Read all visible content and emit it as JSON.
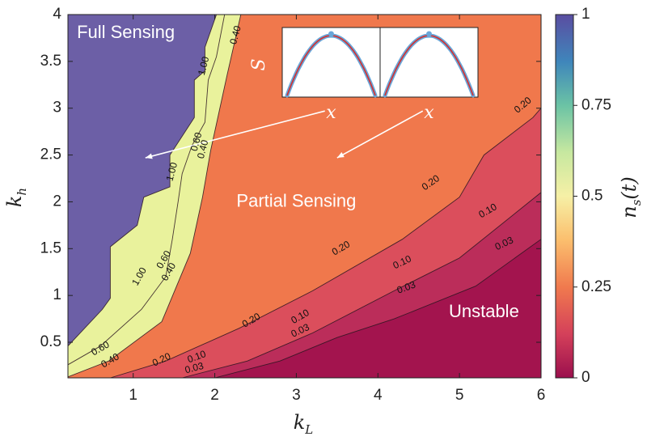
{
  "chart_data": {
    "type": "heatmap",
    "subtype": "filled-contour",
    "x_axis": {
      "label_main": "k",
      "label_sub": "L",
      "range": [
        0.2,
        6
      ],
      "ticks": [
        1,
        2,
        3,
        4,
        5,
        6
      ]
    },
    "y_axis": {
      "label_main": "k",
      "label_sub": "h",
      "range": [
        0.12,
        4
      ],
      "ticks": [
        0.5,
        1,
        1.5,
        2,
        2.5,
        3,
        3.5,
        4
      ]
    },
    "colorbar": {
      "label_main": "n",
      "label_sub": "s",
      "label_suffix": "(t)",
      "range": [
        0,
        1
      ],
      "ticks": [
        {
          "value": 0,
          "label": "0"
        },
        {
          "value": 0.25,
          "label": "0.25"
        },
        {
          "value": 0.5,
          "label": "0.5"
        },
        {
          "value": 0.75,
          "label": "0.75"
        },
        {
          "value": 1,
          "label": "1"
        }
      ]
    },
    "levels": [
      {
        "name": "≥1.00",
        "color": "#6c5fa6"
      },
      {
        "name": "0.40–1.00",
        "color": "#e9f29c"
      },
      {
        "name": "0.20–0.40",
        "color": "#f0784c"
      },
      {
        "name": "0.10–0.20",
        "color": "#db4e5c"
      },
      {
        "name": "0.03–0.10",
        "color": "#bb2d5a"
      },
      {
        "name": "<0.03",
        "color": "#a3144e"
      }
    ],
    "contours": [
      {
        "level": "1.00",
        "points": [
          [
            0.2,
            0.46
          ],
          [
            0.62,
            0.85
          ],
          [
            0.72,
            0.97
          ],
          [
            0.72,
            1.52
          ],
          [
            1.05,
            1.75
          ],
          [
            1.13,
            2.05
          ],
          [
            1.45,
            2.16
          ],
          [
            1.45,
            2.5
          ],
          [
            1.75,
            2.9
          ],
          [
            1.75,
            3.3
          ],
          [
            1.88,
            3.4
          ],
          [
            1.88,
            3.65
          ],
          [
            2.02,
            4.0
          ]
        ]
      },
      {
        "level": "0.60",
        "points": [
          [
            0.2,
            0.26
          ],
          [
            0.6,
            0.46
          ],
          [
            1.1,
            0.85
          ],
          [
            1.4,
            1.2
          ],
          [
            1.48,
            1.6
          ],
          [
            1.55,
            2.0
          ],
          [
            1.6,
            2.3
          ],
          [
            1.72,
            2.6
          ],
          [
            1.88,
            2.85
          ],
          [
            1.92,
            3.3
          ],
          [
            2.02,
            3.55
          ],
          [
            2.12,
            4.0
          ]
        ]
      },
      {
        "level": "0.40",
        "points": [
          [
            0.2,
            0.13
          ],
          [
            0.7,
            0.3
          ],
          [
            1.35,
            0.72
          ],
          [
            1.7,
            1.45
          ],
          [
            1.85,
            2.05
          ],
          [
            1.95,
            2.55
          ],
          [
            2.05,
            2.95
          ],
          [
            2.15,
            3.35
          ],
          [
            2.32,
            4.0
          ]
        ]
      },
      {
        "level": "0.20",
        "points": [
          [
            0.72,
            0.12
          ],
          [
            1.4,
            0.3
          ],
          [
            2.3,
            0.65
          ],
          [
            3.2,
            1.05
          ],
          [
            4.3,
            1.6
          ],
          [
            5.0,
            2.05
          ],
          [
            5.3,
            2.5
          ],
          [
            5.9,
            2.9
          ],
          [
            6.0,
            3.0
          ]
        ]
      },
      {
        "level": "0.10",
        "points": [
          [
            1.6,
            0.12
          ],
          [
            2.4,
            0.3
          ],
          [
            3.2,
            0.6
          ],
          [
            4.2,
            1.05
          ],
          [
            5.0,
            1.4
          ],
          [
            6.0,
            2.1
          ]
        ]
      },
      {
        "level": "0.03",
        "points": [
          [
            2.0,
            0.12
          ],
          [
            2.8,
            0.3
          ],
          [
            3.5,
            0.55
          ],
          [
            4.2,
            0.75
          ],
          [
            5.2,
            1.1
          ],
          [
            6.0,
            1.6
          ]
        ]
      }
    ],
    "contour_labels": [
      {
        "text": "1.00",
        "x": 1.87,
        "y": 3.45,
        "angle": -75
      },
      {
        "text": "0.40",
        "x": 2.26,
        "y": 3.78,
        "angle": -75
      },
      {
        "text": "0.60",
        "x": 1.78,
        "y": 2.64,
        "angle": -75
      },
      {
        "text": "0.40",
        "x": 1.86,
        "y": 2.56,
        "angle": -75
      },
      {
        "text": "1.00",
        "x": 1.48,
        "y": 2.32,
        "angle": -75
      },
      {
        "text": "1.00",
        "x": 1.08,
        "y": 1.2,
        "angle": -60
      },
      {
        "text": "0.60",
        "x": 1.38,
        "y": 1.38,
        "angle": -60
      },
      {
        "text": "0.40",
        "x": 1.44,
        "y": 1.25,
        "angle": -60
      },
      {
        "text": "0.60",
        "x": 0.6,
        "y": 0.43,
        "angle": -30
      },
      {
        "text": "0.40",
        "x": 0.72,
        "y": 0.3,
        "angle": -30
      },
      {
        "text": "0.20",
        "x": 1.35,
        "y": 0.31,
        "angle": -25
      },
      {
        "text": "0.10",
        "x": 1.78,
        "y": 0.34,
        "angle": -20
      },
      {
        "text": "0.03",
        "x": 1.75,
        "y": 0.22,
        "angle": -15
      },
      {
        "text": "0.20",
        "x": 2.45,
        "y": 0.73,
        "angle": -30
      },
      {
        "text": "0.10",
        "x": 3.05,
        "y": 0.77,
        "angle": -30
      },
      {
        "text": "0.03",
        "x": 3.05,
        "y": 0.62,
        "angle": -25
      },
      {
        "text": "0.20",
        "x": 3.55,
        "y": 1.5,
        "angle": -30
      },
      {
        "text": "0.10",
        "x": 4.3,
        "y": 1.35,
        "angle": -25
      },
      {
        "text": "0.03",
        "x": 4.35,
        "y": 1.08,
        "angle": -20
      },
      {
        "text": "0.20",
        "x": 4.65,
        "y": 2.2,
        "angle": -35
      },
      {
        "text": "0.10",
        "x": 5.35,
        "y": 1.9,
        "angle": -30
      },
      {
        "text": "0.03",
        "x": 5.55,
        "y": 1.55,
        "angle": -25
      },
      {
        "text": "0.20",
        "x": 5.78,
        "y": 3.03,
        "angle": -40
      }
    ],
    "annotations": [
      {
        "text": "Full Sensing",
        "x": 0.91,
        "y": 3.8
      },
      {
        "text": "Partial Sensing",
        "x": 3.0,
        "y": 2.0
      },
      {
        "text": "Unstable",
        "x": 5.3,
        "y": 0.82
      }
    ],
    "inset": {
      "y_label": "S",
      "x_label": "x",
      "panels": [
        {
          "curve_color": "#d32f2f",
          "data_color": "#6aa6d8"
        },
        {
          "curve_color": "#d32f2f",
          "data_color": "#6aa6d8"
        }
      ],
      "arrows": [
        {
          "from": [
            3.35,
            2.97
          ],
          "to": [
            1.15,
            2.47
          ]
        },
        {
          "from": [
            4.55,
            2.97
          ],
          "to": [
            3.5,
            2.47
          ]
        }
      ]
    }
  }
}
